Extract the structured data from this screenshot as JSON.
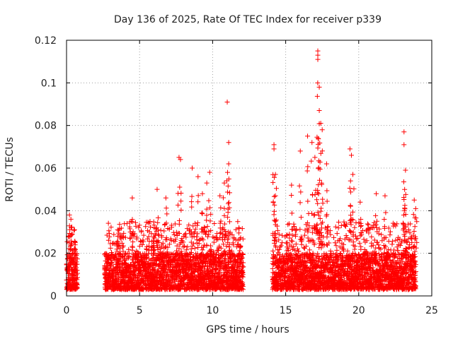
{
  "chart_data": {
    "type": "scatter",
    "title": "Day 136 of 2025, Rate Of TEC Index for receiver p339",
    "xlabel": "GPS time / hours",
    "ylabel": "ROTI / TECUs",
    "xlim": [
      0,
      25
    ],
    "ylim": [
      0,
      0.12
    ],
    "x_ticks": [
      "0",
      "5",
      "10",
      "15",
      "20",
      "25"
    ],
    "y_ticks": [
      "0",
      "0.02",
      "0.04",
      "0.06",
      "0.08",
      "0.1",
      "0.12"
    ],
    "grid": true,
    "marker": "+",
    "color": "#ff0000",
    "coverage_hours": [
      [
        0.0,
        0.75
      ],
      [
        2.6,
        12.1
      ],
      [
        14.1,
        23.9
      ]
    ],
    "baseline_range": [
      0.003,
      0.02
    ],
    "notable_points": [
      {
        "x": 0.2,
        "y": 0.038
      },
      {
        "x": 0.3,
        "y": 0.036
      },
      {
        "x": 0.6,
        "y": 0.025
      },
      {
        "x": 3.5,
        "y": 0.028
      },
      {
        "x": 4.5,
        "y": 0.046
      },
      {
        "x": 6.0,
        "y": 0.032
      },
      {
        "x": 6.2,
        "y": 0.05
      },
      {
        "x": 6.8,
        "y": 0.046
      },
      {
        "x": 7.7,
        "y": 0.065
      },
      {
        "x": 7.8,
        "y": 0.064
      },
      {
        "x": 8.6,
        "y": 0.06
      },
      {
        "x": 9.0,
        "y": 0.056
      },
      {
        "x": 9.3,
        "y": 0.048
      },
      {
        "x": 9.6,
        "y": 0.053
      },
      {
        "x": 9.8,
        "y": 0.058
      },
      {
        "x": 10.5,
        "y": 0.047
      },
      {
        "x": 10.8,
        "y": 0.053
      },
      {
        "x": 11.0,
        "y": 0.091
      },
      {
        "x": 11.1,
        "y": 0.072
      },
      {
        "x": 11.1,
        "y": 0.062
      },
      {
        "x": 11.8,
        "y": 0.032
      },
      {
        "x": 14.2,
        "y": 0.071
      },
      {
        "x": 14.2,
        "y": 0.069
      },
      {
        "x": 14.3,
        "y": 0.057
      },
      {
        "x": 14.3,
        "y": 0.047
      },
      {
        "x": 15.4,
        "y": 0.052
      },
      {
        "x": 16.0,
        "y": 0.068
      },
      {
        "x": 16.5,
        "y": 0.075
      },
      {
        "x": 16.8,
        "y": 0.072
      },
      {
        "x": 17.0,
        "y": 0.065
      },
      {
        "x": 17.2,
        "y": 0.115
      },
      {
        "x": 17.2,
        "y": 0.113
      },
      {
        "x": 17.2,
        "y": 0.111
      },
      {
        "x": 17.3,
        "y": 0.098
      },
      {
        "x": 17.3,
        "y": 0.087
      },
      {
        "x": 17.4,
        "y": 0.081
      },
      {
        "x": 17.5,
        "y": 0.078
      },
      {
        "x": 17.8,
        "y": 0.062
      },
      {
        "x": 19.4,
        "y": 0.069
      },
      {
        "x": 19.5,
        "y": 0.066
      },
      {
        "x": 19.6,
        "y": 0.057
      },
      {
        "x": 20.1,
        "y": 0.044
      },
      {
        "x": 21.2,
        "y": 0.048
      },
      {
        "x": 21.8,
        "y": 0.047
      },
      {
        "x": 23.1,
        "y": 0.077
      },
      {
        "x": 23.1,
        "y": 0.071
      },
      {
        "x": 23.2,
        "y": 0.059
      },
      {
        "x": 23.8,
        "y": 0.045
      },
      {
        "x": 23.9,
        "y": 0.041
      }
    ]
  }
}
